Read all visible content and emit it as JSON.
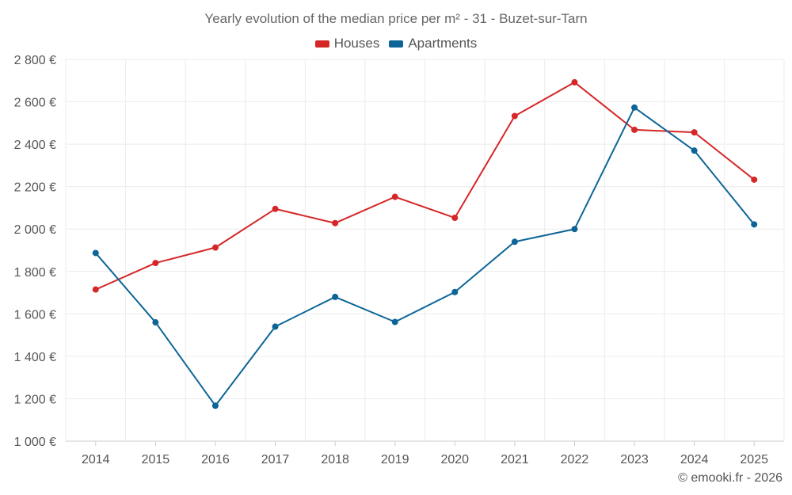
{
  "chart_data": {
    "type": "line",
    "title": "Yearly evolution of the median price per m² - 31 - Buzet-sur-Tarn",
    "categories": [
      "2014",
      "2015",
      "2016",
      "2017",
      "2018",
      "2019",
      "2020",
      "2021",
      "2022",
      "2023",
      "2024",
      "2025"
    ],
    "series": [
      {
        "name": "Houses",
        "color": "#d62728",
        "values": [
          1715,
          1840,
          1913,
          2095,
          2028,
          2152,
          2053,
          2533,
          2692,
          2468,
          2456,
          2233
        ]
      },
      {
        "name": "Apartments",
        "color": "#0d6597",
        "values": [
          1887,
          1560,
          1167,
          1540,
          1680,
          1562,
          1703,
          1940,
          2000,
          2573,
          2370,
          2022
        ]
      }
    ],
    "y_ticks": [
      1000,
      1200,
      1400,
      1600,
      1800,
      2000,
      2200,
      2400,
      2600,
      2800
    ],
    "y_tick_labels": [
      "1 000 €",
      "1 200 €",
      "1 400 €",
      "1 600 €",
      "1 800 €",
      "2 000 €",
      "2 200 €",
      "2 400 €",
      "2 600 €",
      "2 800 €"
    ],
    "ylim": [
      1000,
      2800
    ],
    "xlabel": "",
    "ylabel": "",
    "grid": true,
    "legend_position": "top-center"
  },
  "footer": {
    "credit": "© emooki.fr - 2026"
  }
}
